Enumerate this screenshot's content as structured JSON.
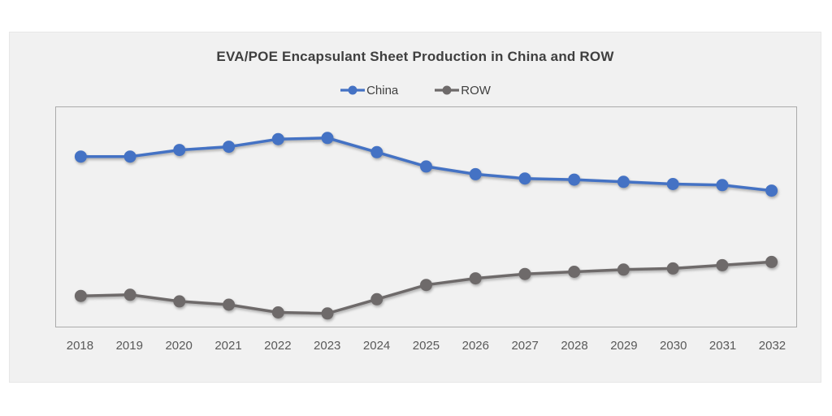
{
  "page": {
    "background_color": "#ffffff",
    "card_background_color": "#f1f1f1",
    "plot_border_color": "#ababab",
    "title_color": "#3f3f3f",
    "tick_label_color": "#595959"
  },
  "chart_data": {
    "type": "line",
    "title": "EVA/POE Encapsulant Sheet Production in China and ROW",
    "categories": [
      "2018",
      "2019",
      "2020",
      "2021",
      "2022",
      "2023",
      "2024",
      "2025",
      "2026",
      "2027",
      "2028",
      "2029",
      "2030",
      "2031",
      "2032"
    ],
    "series": [
      {
        "name": "China",
        "color": "#4472C4",
        "values": [
          77.5,
          77.5,
          80.5,
          82,
          85.5,
          86,
          79.5,
          73,
          69.5,
          67.5,
          67,
          66,
          65,
          64.5,
          62
        ]
      },
      {
        "name": "ROW",
        "color": "#6E6A6A",
        "values": [
          14,
          14.5,
          11.5,
          10,
          6.5,
          6,
          12.5,
          19,
          22,
          24,
          25,
          26,
          26.5,
          28,
          29.5
        ]
      }
    ],
    "xlabel": "",
    "ylabel": "",
    "ylim": [
      0,
      100
    ],
    "y_axis_visible": false,
    "grid": false,
    "legend_position": "top",
    "marker": "circle",
    "note": "values estimated on hidden 0-100 scale (share of production, %)"
  }
}
